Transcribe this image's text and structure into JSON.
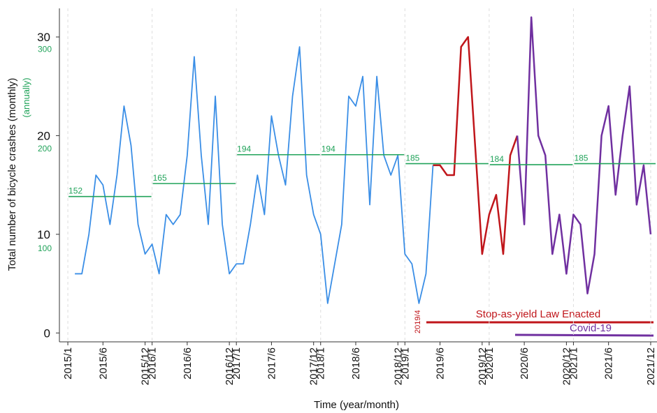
{
  "chart_data": {
    "type": "line",
    "y_label": "Total number of bicycle crashes (monthly)",
    "y2_label": "(annually)",
    "x_label": "Time (year/month)",
    "xlim": [
      -1.2,
      83.9
    ],
    "ylim": [
      -0.9,
      32.9
    ],
    "y2lim": [
      6,
      341
    ],
    "yticks": [
      0,
      10,
      20,
      30
    ],
    "y2ticks": [
      100,
      200,
      300
    ],
    "y2_color": "#21a35a",
    "xticks": [
      {
        "value": 0,
        "label": "2015/1"
      },
      {
        "value": 5,
        "label": "2015/6"
      },
      {
        "value": 11,
        "label": "2015/12"
      },
      {
        "value": 12,
        "label": "2016/1"
      },
      {
        "value": 17,
        "label": "2016/6"
      },
      {
        "value": 23,
        "label": "2016/12"
      },
      {
        "value": 24,
        "label": "2017/1"
      },
      {
        "value": 29,
        "label": "2017/6"
      },
      {
        "value": 35,
        "label": "2017/12"
      },
      {
        "value": 36,
        "label": "2018/1"
      },
      {
        "value": 41,
        "label": "2018/6"
      },
      {
        "value": 47,
        "label": "2018/12"
      },
      {
        "value": 48,
        "label": "2019/1"
      },
      {
        "value": 53,
        "label": "2019/6"
      },
      {
        "value": 59,
        "label": "2019/12"
      },
      {
        "value": 60,
        "label": "2020/1"
      },
      {
        "value": 65,
        "label": "2020/6"
      },
      {
        "value": 71,
        "label": "2020/12"
      },
      {
        "value": 72,
        "label": "2021/1"
      },
      {
        "value": 77,
        "label": "2021/6"
      },
      {
        "value": 83,
        "label": "2021/12"
      }
    ],
    "series": [
      {
        "color": "#3a8ee6",
        "x": [
          1,
          2,
          3,
          4,
          5,
          6,
          7,
          8,
          9,
          10,
          11,
          12,
          13,
          14,
          15,
          16,
          17,
          18,
          19,
          20,
          21,
          22,
          23,
          24,
          25,
          26,
          27,
          28,
          29,
          30,
          31,
          32,
          33,
          34,
          35,
          36,
          37,
          38,
          39,
          40,
          41,
          42,
          43,
          44,
          45,
          46,
          47,
          48,
          49,
          50,
          51,
          52
        ],
        "values": [
          6,
          6,
          10,
          16,
          15,
          11,
          16,
          23,
          19,
          11,
          8,
          9,
          6,
          12,
          11,
          12,
          18,
          28,
          18,
          11,
          24,
          11,
          6,
          7,
          7,
          11,
          16,
          12,
          22,
          18,
          15,
          24,
          29,
          16,
          12,
          10,
          3,
          7,
          11,
          24,
          23,
          26,
          13,
          26,
          18,
          16,
          18,
          8,
          7,
          3,
          6,
          17
        ]
      },
      {
        "color": "#c0161b",
        "x": [
          52,
          53,
          54,
          55,
          56,
          57,
          58,
          59,
          60,
          61,
          62,
          63,
          64
        ],
        "values": [
          17,
          17,
          16,
          16,
          29,
          30,
          19,
          8,
          12,
          14,
          8,
          18,
          20
        ]
      },
      {
        "color": "#7030a0",
        "x": [
          64,
          65,
          66,
          67,
          68,
          69,
          70,
          71,
          72,
          73,
          74,
          75,
          76,
          77,
          78,
          79,
          80,
          81,
          82,
          83
        ],
        "values": [
          20,
          11,
          32,
          20,
          18,
          8,
          12,
          6,
          12,
          11,
          4,
          8,
          20,
          23,
          14,
          20,
          25,
          13,
          17,
          10
        ]
      }
    ],
    "annual": {
      "color": "#21a35a",
      "axis": "y2",
      "x_start": [
        0,
        12,
        24,
        36,
        48,
        60,
        72
      ],
      "x_end": [
        12,
        24,
        36,
        48,
        60,
        72,
        84
      ],
      "values": [
        152,
        165,
        194,
        194,
        185,
        184,
        185
      ]
    },
    "annotations": {
      "law": "Stop-as-yield Law Enacted",
      "law_date": "2019/4",
      "covid": "Covid-19"
    }
  }
}
